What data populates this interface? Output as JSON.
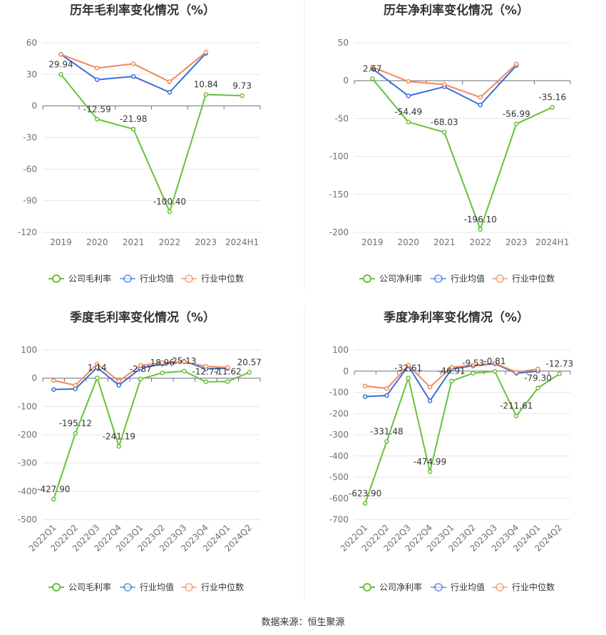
{
  "footer": {
    "source": "数据来源：恒生聚源"
  },
  "colors": {
    "company": "#66c23a",
    "industry_avg": "#3a6fd8",
    "industry_median": "#f08a5d"
  },
  "chart_data": [
    {
      "type": "line",
      "title": "历年毛利率变化情况（%）",
      "categories": [
        "2019",
        "2020",
        "2021",
        "2022",
        "2023",
        "2024H1"
      ],
      "ylim": [
        -120,
        60
      ],
      "yticks": [
        60,
        30,
        0,
        -30,
        -60,
        -90,
        -120
      ],
      "series": [
        {
          "name": "公司毛利率",
          "role": "company",
          "values": [
            29.94,
            -12.59,
            -21.98,
            -100.4,
            10.84,
            9.73
          ],
          "labels": [
            "29.94",
            "-12.59",
            "-21.98",
            "-100.40",
            "10.84",
            "9.73"
          ]
        },
        {
          "name": "行业均值",
          "role": "industry_avg",
          "values": [
            49,
            25,
            28,
            13,
            50,
            null
          ]
        },
        {
          "name": "行业中位数",
          "role": "industry_median",
          "values": [
            49,
            36,
            40,
            23,
            51,
            null
          ]
        }
      ]
    },
    {
      "type": "line",
      "title": "历年净利率变化情况（%）",
      "categories": [
        "2019",
        "2020",
        "2021",
        "2022",
        "2023",
        "2024H1"
      ],
      "ylim": [
        -200,
        50
      ],
      "yticks": [
        50,
        0,
        -50,
        -100,
        -150,
        -200
      ],
      "series": [
        {
          "name": "公司净利率",
          "role": "company",
          "values": [
            2.67,
            -54.49,
            -68.03,
            -196.1,
            -56.99,
            -35.16
          ],
          "labels": [
            "2.67",
            "-54.49",
            "-68.03",
            "-196.10",
            "-56.99",
            "-35.16"
          ]
        },
        {
          "name": "行业均值",
          "role": "industry_avg",
          "values": [
            16,
            -20,
            -8,
            -32,
            20,
            null
          ]
        },
        {
          "name": "行业中位数",
          "role": "industry_median",
          "values": [
            18,
            -1,
            -5,
            -22,
            22,
            null
          ]
        }
      ]
    },
    {
      "type": "line",
      "title": "季度毛利率变化情况（%）",
      "categories": [
        "2022Q1",
        "2022Q2",
        "2022Q3",
        "2022Q4",
        "2023Q1",
        "2023Q2",
        "2023Q3",
        "2023Q4",
        "2024Q1",
        "2024Q2"
      ],
      "ylim": [
        -500,
        100
      ],
      "yticks": [
        100,
        0,
        -100,
        -200,
        -300,
        -400,
        -500
      ],
      "rotate_xticks": true,
      "series": [
        {
          "name": "公司毛利率",
          "role": "company",
          "values": [
            -427.9,
            -195.12,
            1.14,
            -241.19,
            -2.87,
            18.96,
            25.13,
            -12.77,
            -11.62,
            20.57
          ],
          "labels": [
            "-427.90",
            "-195.12",
            "1.14",
            "-241.19",
            "-2.87",
            "18.96",
            "25.13",
            "-12.77",
            "-11.62",
            "20.57"
          ]
        },
        {
          "name": "行业均值",
          "role": "industry_avg",
          "values": [
            -40,
            -38,
            38,
            -25,
            35,
            50,
            60,
            33,
            35,
            null
          ]
        },
        {
          "name": "行业中位数",
          "role": "industry_median",
          "values": [
            -8,
            -25,
            50,
            -10,
            45,
            55,
            58,
            42,
            38,
            null
          ]
        }
      ]
    },
    {
      "type": "line",
      "title": "季度净利率变化情况（%）",
      "categories": [
        "2022Q1",
        "2022Q2",
        "2022Q3",
        "2022Q4",
        "2023Q1",
        "2023Q2",
        "2023Q3",
        "2023Q4",
        "2024Q1",
        "2024Q2"
      ],
      "ylim": [
        -700,
        100
      ],
      "yticks": [
        100,
        0,
        -100,
        -200,
        -300,
        -400,
        -500,
        -600,
        -700
      ],
      "rotate_xticks": true,
      "series": [
        {
          "name": "公司净利率",
          "role": "company",
          "values": [
            -623.9,
            -331.48,
            -32.61,
            -474.99,
            -46.91,
            -9.53,
            -0.81,
            -211.61,
            -79.3,
            -12.73
          ],
          "labels": [
            "-623.90",
            "-331.48",
            "-32.61",
            "-474.99",
            "-46.91",
            "-9.53",
            "-0.81",
            "-211.61",
            "-79.30",
            "-12.73"
          ]
        },
        {
          "name": "行业均值",
          "role": "industry_avg",
          "values": [
            -120,
            -115,
            25,
            -140,
            10,
            25,
            35,
            -10,
            0,
            null
          ]
        },
        {
          "name": "行业中位数",
          "role": "industry_median",
          "values": [
            -70,
            -82,
            28,
            -75,
            18,
            28,
            38,
            -5,
            10,
            null
          ]
        }
      ]
    }
  ]
}
